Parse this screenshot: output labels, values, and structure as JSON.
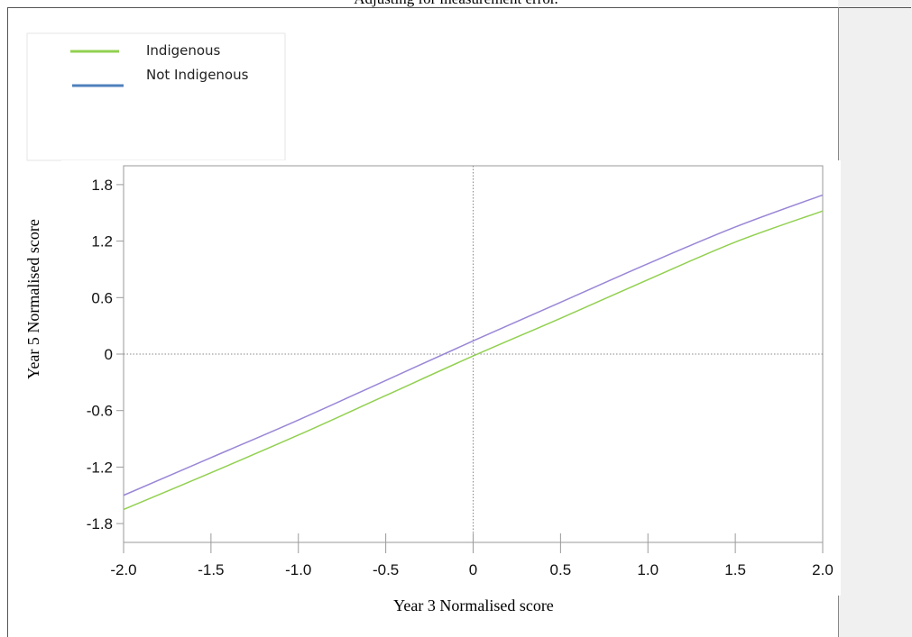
{
  "caption": "Adjusting for measurement error.",
  "chart_data": {
    "type": "line",
    "title": "",
    "xlabel": "Year 3 Normalised score",
    "ylabel": "Year 5 Normalised score",
    "xlim": [
      -2.0,
      2.0
    ],
    "ylim": [
      -2.0,
      2.0
    ],
    "x_ticks": [
      "-2.0",
      "-1.5",
      "-1.0",
      "-0.5",
      "0",
      "0.5",
      "1.0",
      "1.5",
      "2.0"
    ],
    "x_tick_values": [
      -2.0,
      -1.5,
      -1.0,
      -0.5,
      0,
      0.5,
      1.0,
      1.5,
      2.0
    ],
    "y_ticks": [
      "1.8",
      "1.2",
      "0.6",
      "0",
      "-0.6",
      "-1.2",
      "-1.8"
    ],
    "y_tick_values": [
      1.8,
      1.2,
      0.6,
      0,
      -0.6,
      -1.2,
      -1.8
    ],
    "reference_lines": {
      "x": 0,
      "y": 0,
      "style": "dotted"
    },
    "legend_position": "top-left, above plot",
    "series": [
      {
        "name": "Indigenous",
        "color": "#92d050",
        "x": [
          -2.0,
          -1.5,
          -1.0,
          -0.5,
          0,
          0.5,
          1.0,
          1.5,
          2.0
        ],
        "y": [
          -1.65,
          -1.26,
          -0.86,
          -0.44,
          -0.02,
          0.38,
          0.79,
          1.19,
          1.52
        ]
      },
      {
        "name": "Not Indigenous",
        "color": "#4f81bd",
        "x": [
          -2.0,
          -1.5,
          -1.0,
          -0.5,
          0,
          0.5,
          1.0,
          1.5,
          2.0
        ],
        "y": [
          -1.5,
          -1.1,
          -0.7,
          -0.28,
          0.14,
          0.55,
          0.96,
          1.35,
          1.69
        ]
      }
    ]
  }
}
